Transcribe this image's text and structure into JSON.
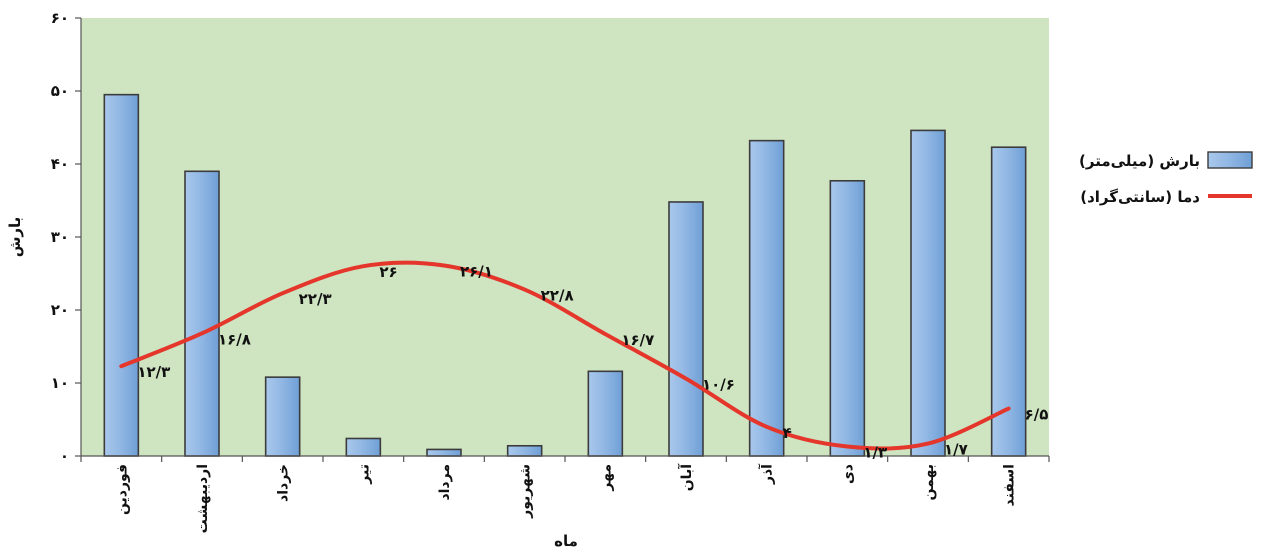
{
  "chart_data": {
    "type": "bar",
    "categories": [
      "فوردین",
      "اردیبهشت",
      "خرداد",
      "تیر",
      "مرداد",
      "شهریور",
      "مهر",
      "آبان",
      "آذر",
      "دی",
      "بهمن",
      "اسفند"
    ],
    "series": [
      {
        "name": "بارش (میلی‌متر)",
        "type": "bar",
        "values": [
          49.5,
          39,
          10.8,
          2.4,
          0.9,
          1.4,
          11.6,
          34.8,
          43.2,
          37.7,
          44.6,
          42.3
        ],
        "color": "#8fb6e3"
      },
      {
        "name": "دما (سانتی‌گراد)",
        "type": "line",
        "values": [
          12.3,
          16.8,
          22.3,
          26,
          26.1,
          22.8,
          16.7,
          10.6,
          4,
          1.3,
          1.7,
          6.5
        ],
        "color": "#e5362b"
      }
    ],
    "line_labels": [
      "۱۲/۳",
      "۱۶/۸",
      "۲۲/۳",
      "۲۶",
      "۲۶/۱",
      "۲۲/۸",
      "۱۶/۷",
      "۱۰/۶",
      "۴",
      "۱/۳",
      "۱/۷",
      "۶/۵"
    ],
    "ylabel": "بارش",
    "xlabel": "ماه",
    "ylim": [
      0,
      60
    ],
    "yticks": [
      0,
      10,
      20,
      30,
      40,
      50,
      60
    ],
    "ytick_labels": [
      "۰",
      "۱۰",
      "۲۰",
      "۳۰",
      "۴۰",
      "۵۰",
      "۶۰"
    ],
    "grid": false,
    "legend_position": "right",
    "plot_background": "#cfe4c1"
  }
}
